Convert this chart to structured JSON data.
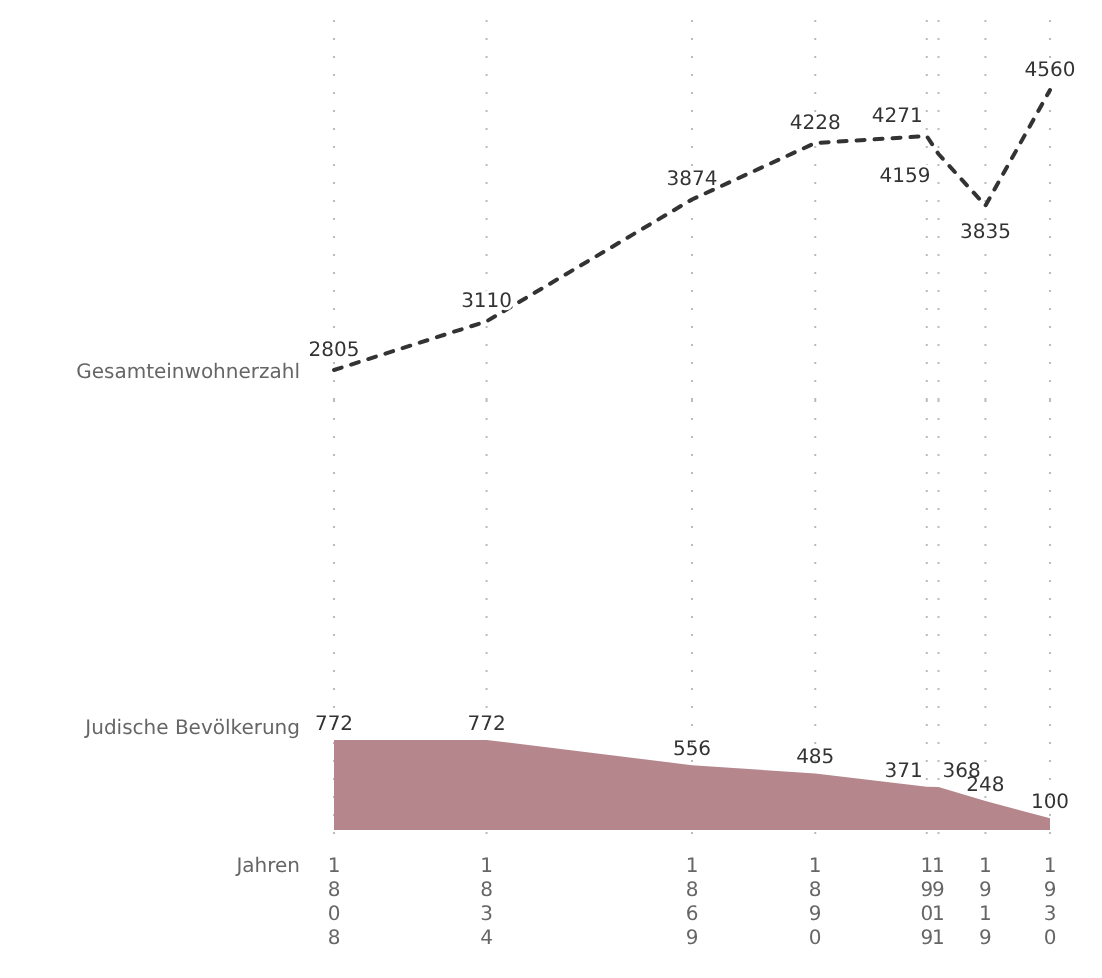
{
  "chart_data": [
    {
      "type": "line",
      "x": [
        1808,
        1834,
        1869,
        1890,
        1909,
        1911,
        1919,
        1930
      ],
      "xlim": [
        1808,
        1930
      ],
      "xticks": [
        1808,
        1834,
        1869,
        1890,
        1909,
        1911,
        1919,
        1930
      ],
      "tick_labels": false,
      "series": [
        {
          "name": "Gesamteinwohnerzahl",
          "color": "#333333",
          "line_style": "dashed",
          "values": [
            2805,
            3110,
            3874,
            4228,
            4271,
            4159,
            3835,
            4560
          ]
        }
      ],
      "data_labels": true,
      "grid": "x",
      "marker": "none"
    },
    {
      "type": "area",
      "xlabel": "Jahren",
      "x": [
        1808,
        1834,
        1869,
        1890,
        1909,
        1911,
        1919,
        1930
      ],
      "xlim": [
        1808,
        1930
      ],
      "xticks": [
        1808,
        1834,
        1869,
        1890,
        1909,
        1911,
        1919,
        1930
      ],
      "tick_labels": "x",
      "series": [
        {
          "name": "Judische Bevölkerung",
          "color": "#b5868c",
          "values": [
            772,
            772,
            556,
            485,
            371,
            368,
            248,
            100
          ]
        }
      ],
      "data_labels": true,
      "grid": "x"
    }
  ]
}
